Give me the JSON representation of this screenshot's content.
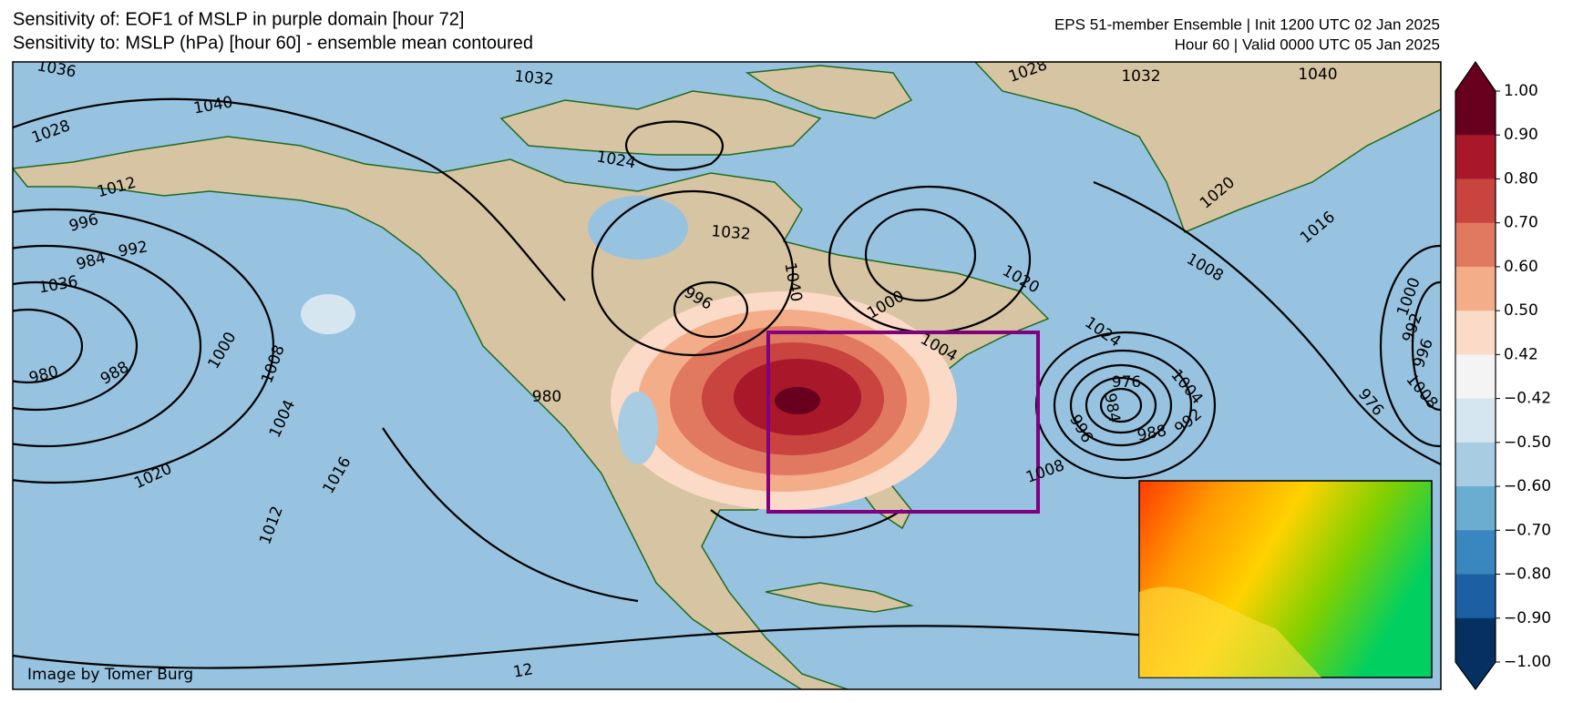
{
  "header": {
    "title_line1": "Sensitivity of: EOF1 of MSLP in purple domain [hour 72]",
    "title_line2": "Sensitivity to: MSLP (hPa) [hour 60] - ensemble mean contoured",
    "info_line1": "EPS 51-member Ensemble | Init 1200 UTC 02 Jan 2025",
    "info_line2": "Hour 60 | Valid 0000 UTC 05 Jan 2025"
  },
  "map": {
    "credit": "Image by Tomer Burg",
    "contour_labels": [
      1036,
      1032,
      1028,
      1032,
      1040,
      1040,
      1028,
      1024,
      1012,
      996,
      992,
      984,
      1036,
      1032,
      1040,
      996,
      1000,
      1020,
      1020,
      1016,
      1008,
      1004,
      1024,
      980,
      976,
      984,
      988,
      992,
      996,
      1004,
      1000,
      992,
      996,
      1008,
      976,
      980,
      988,
      1000,
      1008,
      1004,
      1020,
      1016,
      1012,
      12,
      1008
    ]
  },
  "colorbar": {
    "ticks": [
      {
        "value": 1.0,
        "label": "1.00"
      },
      {
        "value": 0.9,
        "label": "0.90"
      },
      {
        "value": 0.8,
        "label": "0.80"
      },
      {
        "value": 0.7,
        "label": "0.70"
      },
      {
        "value": 0.6,
        "label": "0.60"
      },
      {
        "value": 0.5,
        "label": "0.50"
      },
      {
        "value": 0.42,
        "label": "0.42"
      },
      {
        "value": -0.42,
        "label": "−0.42"
      },
      {
        "value": -0.5,
        "label": "−0.50"
      },
      {
        "value": -0.6,
        "label": "−0.60"
      },
      {
        "value": -0.7,
        "label": "−0.70"
      },
      {
        "value": -0.8,
        "label": "−0.80"
      },
      {
        "value": -0.9,
        "label": "−0.90"
      },
      {
        "value": -1.0,
        "label": "−1.00"
      }
    ],
    "colors": [
      "#67001f",
      "#a8172a",
      "#c9433f",
      "#e0795f",
      "#f4ad89",
      "#fbdac7",
      "#f4f4f4",
      "#d6e6f0",
      "#a8cde2",
      "#6bacd1",
      "#3a87bf",
      "#1d5fa3",
      "#053061"
    ]
  }
}
